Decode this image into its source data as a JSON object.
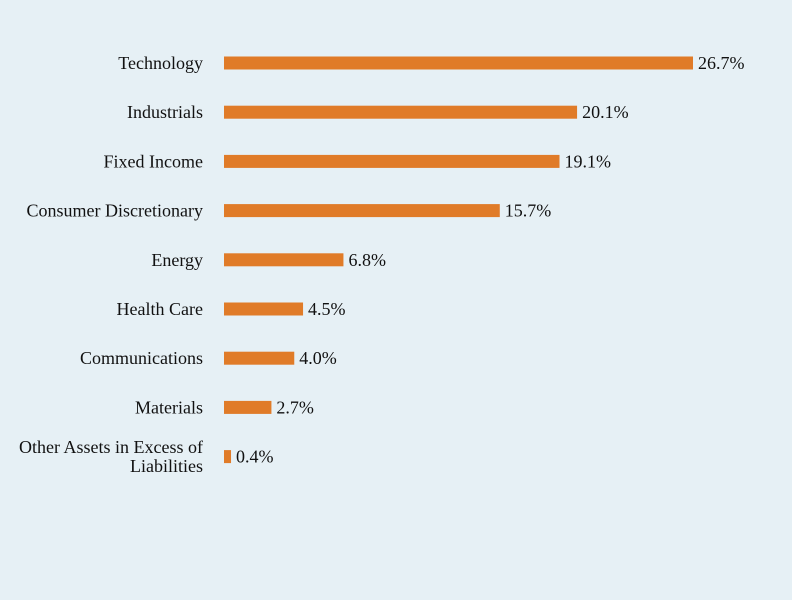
{
  "chart_data": {
    "type": "bar",
    "orientation": "horizontal",
    "categories": [
      "Technology",
      "Industrials",
      "Fixed Income",
      "Consumer Discretionary",
      "Energy",
      "Health Care",
      "Communications",
      "Materials",
      "Other Assets in Excess of Liabilities"
    ],
    "category_lines": [
      [
        "Technology"
      ],
      [
        "Industrials"
      ],
      [
        "Fixed Income"
      ],
      [
        "Consumer Discretionary"
      ],
      [
        "Energy"
      ],
      [
        "Health Care"
      ],
      [
        "Communications"
      ],
      [
        "Materials"
      ],
      [
        "Other Assets in Excess of",
        "Liabilities"
      ]
    ],
    "values": [
      26.7,
      20.1,
      19.1,
      15.7,
      6.8,
      4.5,
      4.0,
      2.7,
      0.4
    ],
    "value_labels": [
      "26.7%",
      "20.1%",
      "19.1%",
      "15.7%",
      "6.8%",
      "4.5%",
      "4.0%",
      "2.7%",
      "0.4%"
    ],
    "value_unit": "%",
    "bar_color": "#e07b28",
    "background_color": "#e6f0f5",
    "title": "",
    "xlabel": "",
    "ylabel": "",
    "xlim": [
      0,
      26.7
    ],
    "grid": false,
    "legend": "none"
  }
}
